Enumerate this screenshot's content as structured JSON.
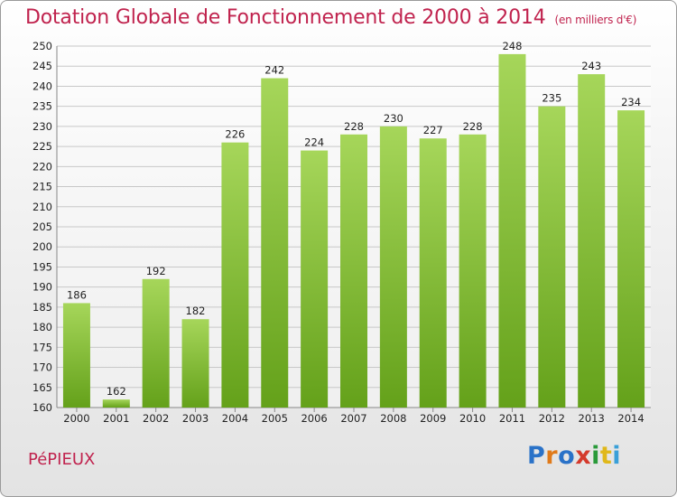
{
  "header": {
    "title": "Dotation Globale de Fonctionnement de 2000 à 2014",
    "unit": "(en milliers d'€)"
  },
  "footer": {
    "place": "PéPIEUX",
    "logo_letters": [
      {
        "ch": "P",
        "color": "#2a72c8"
      },
      {
        "ch": "r",
        "color": "#e07a1a"
      },
      {
        "ch": "o",
        "color": "#2a72c8"
      },
      {
        "ch": "x",
        "color": "#d43a2c"
      },
      {
        "ch": "i",
        "color": "#2a9a3a"
      },
      {
        "ch": "t",
        "color": "#e0b81a"
      },
      {
        "ch": "i",
        "color": "#3aa0d8"
      }
    ]
  },
  "colors": {
    "bar_top": "#a6d65a",
    "bar_bottom": "#64a11a",
    "grid": "#c8c8c8",
    "title": "#c0234e"
  },
  "chart_data": {
    "type": "bar",
    "title": "Dotation Globale de Fonctionnement de 2000 à 2014",
    "subtitle": "(en milliers d'€)",
    "xlabel": "",
    "ylabel": "",
    "categories": [
      "2000",
      "2001",
      "2002",
      "2003",
      "2004",
      "2005",
      "2006",
      "2007",
      "2008",
      "2009",
      "2010",
      "2011",
      "2012",
      "2013",
      "2014"
    ],
    "values": [
      186,
      162,
      192,
      182,
      226,
      242,
      224,
      228,
      230,
      227,
      228,
      248,
      235,
      243,
      234
    ],
    "ylim": [
      160,
      250
    ],
    "ytick_step": 5,
    "grid": true
  }
}
